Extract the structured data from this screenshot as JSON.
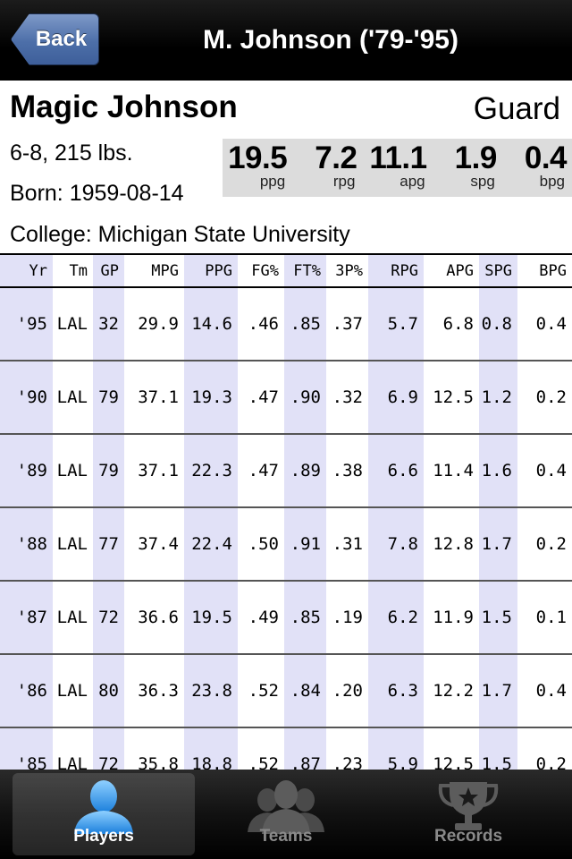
{
  "nav": {
    "back_label": "Back",
    "title": "M. Johnson ('79-'95)"
  },
  "player": {
    "name": "Magic Johnson",
    "position": "Guard",
    "size": "6-8, 215 lbs.",
    "born": "Born: 1959-08-14",
    "college": "College: Michigan State University"
  },
  "career_stats": [
    {
      "value": "19.5",
      "unit": "ppg"
    },
    {
      "value": "7.2",
      "unit": "rpg"
    },
    {
      "value": "11.1",
      "unit": "apg"
    },
    {
      "value": "1.9",
      "unit": "spg"
    },
    {
      "value": "0.4",
      "unit": "bpg"
    }
  ],
  "table": {
    "columns": [
      "Yr",
      "Tm",
      "GP",
      "MPG",
      "PPG",
      "FG%",
      "FT%",
      "3P%",
      "RPG",
      "APG",
      "SPG",
      "BPG"
    ],
    "rows": [
      [
        "'95",
        "LAL",
        "32",
        "29.9",
        "14.6",
        ".46",
        ".85",
        ".37",
        "5.7",
        "6.8",
        "0.8",
        "0.4"
      ],
      [
        "'90",
        "LAL",
        "79",
        "37.1",
        "19.3",
        ".47",
        ".90",
        ".32",
        "6.9",
        "12.5",
        "1.2",
        "0.2"
      ],
      [
        "'89",
        "LAL",
        "79",
        "37.1",
        "22.3",
        ".47",
        ".89",
        ".38",
        "6.6",
        "11.4",
        "1.6",
        "0.4"
      ],
      [
        "'88",
        "LAL",
        "77",
        "37.4",
        "22.4",
        ".50",
        ".91",
        ".31",
        "7.8",
        "12.8",
        "1.7",
        "0.2"
      ],
      [
        "'87",
        "LAL",
        "72",
        "36.6",
        "19.5",
        ".49",
        ".85",
        ".19",
        "6.2",
        "11.9",
        "1.5",
        "0.1"
      ],
      [
        "'86",
        "LAL",
        "80",
        "36.3",
        "23.8",
        ".52",
        ".84",
        ".20",
        "6.3",
        "12.2",
        "1.7",
        "0.4"
      ],
      [
        "'85",
        "LAL",
        "72",
        "35.8",
        "18.8",
        ".52",
        ".87",
        ".23",
        "5.9",
        "12.5",
        "1.5",
        "0.2"
      ]
    ]
  },
  "tabs": [
    {
      "label": "Players",
      "icon": "person-icon",
      "selected": true
    },
    {
      "label": "Teams",
      "icon": "group-icon",
      "selected": false
    },
    {
      "label": "Records",
      "icon": "trophy-icon",
      "selected": false
    }
  ],
  "colors": {
    "column_highlight": "#e1e1f7",
    "back_button": "#4d6fa9",
    "selected_tab_icon": "#2a9be8"
  }
}
